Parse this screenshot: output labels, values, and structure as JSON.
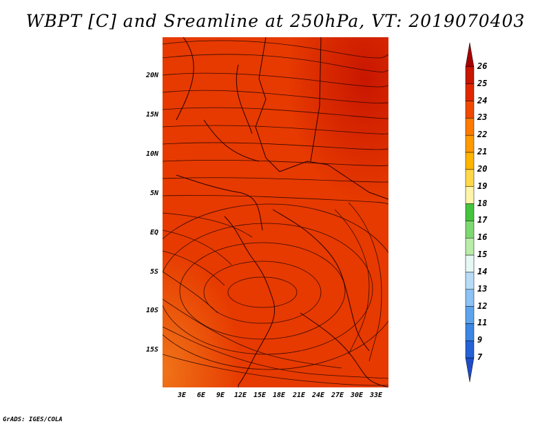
{
  "title": "WBPT [C] and Sreamline at 250hPa, VT: 2019070403",
  "credit": "GrADS: IGES/COLA",
  "lat_labels": [
    "20N",
    "15N",
    "10N",
    "5N",
    "EQ",
    "5S",
    "10S",
    "15S"
  ],
  "lon_labels": [
    "3E",
    "6E",
    "9E",
    "12E",
    "15E",
    "18E",
    "21E",
    "24E",
    "27E",
    "30E",
    "33E"
  ],
  "colorbar": {
    "labels": [
      "26",
      "25",
      "24",
      "23",
      "22",
      "21",
      "20",
      "19",
      "18",
      "17",
      "16",
      "15",
      "14",
      "13",
      "12",
      "11",
      "9",
      "7"
    ],
    "colors": [
      "#a50000",
      "#c81600",
      "#e02800",
      "#f04a00",
      "#ff7a00",
      "#ff9a00",
      "#ffb400",
      "#ffd84a",
      "#fff4a8",
      "#44c43c",
      "#7cd870",
      "#b8eca8",
      "#e6f8f4",
      "#b8dcf8",
      "#8cc2f4",
      "#5ea4ec",
      "#3c86e4",
      "#2462d6",
      "#1e4cc8"
    ]
  }
}
